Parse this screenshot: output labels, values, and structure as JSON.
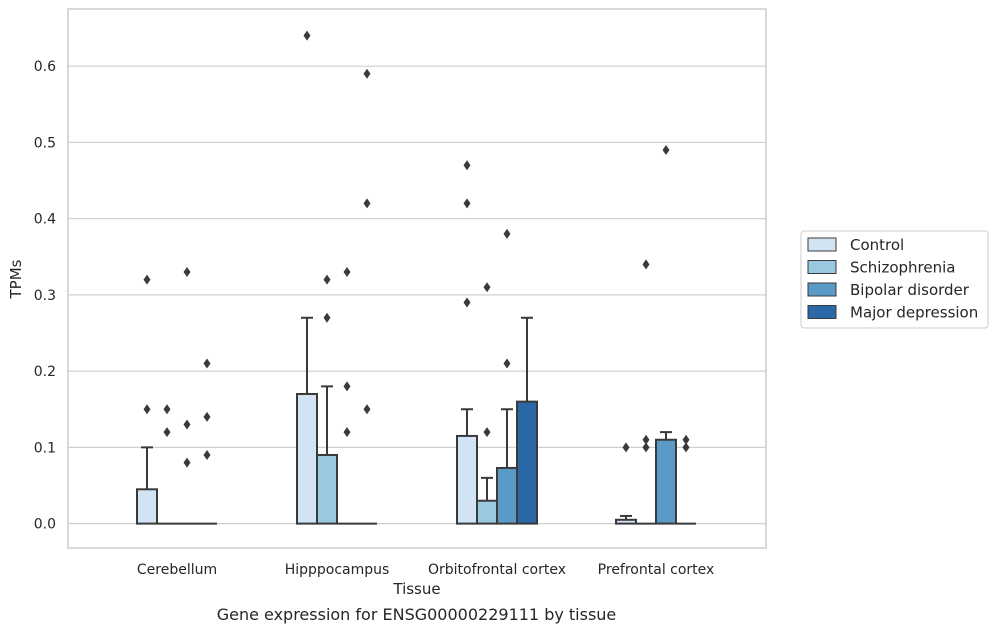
{
  "caption": "Gene expression for ENSG00000229111 by tissue",
  "chart_data": {
    "type": "bar",
    "xlabel": "Tissue",
    "ylabel": "TPMs",
    "ylim": [
      -0.032,
      0.675
    ],
    "yticks": [
      0.0,
      0.1,
      0.2,
      0.3,
      0.4,
      0.5,
      0.6
    ],
    "ytick_labels": [
      "0.0",
      "0.1",
      "0.2",
      "0.3",
      "0.4",
      "0.5",
      "0.6"
    ],
    "grid": "horizontal",
    "legend_position": "right",
    "categories": [
      "Cerebellum",
      "Hipppocampus",
      "Orbitofrontal cortex",
      "Prefrontal cortex"
    ],
    "series": [
      {
        "name": "Control",
        "color": "#d2e3f3",
        "values": [
          0.045,
          0.17,
          0.115,
          0.005
        ],
        "whisker_high": [
          0.1,
          0.27,
          0.15,
          0.01
        ],
        "outliers": [
          [
            0.32,
            0.15
          ],
          [
            0.64
          ],
          [
            0.47,
            0.42,
            0.29
          ],
          [
            0.1
          ]
        ]
      },
      {
        "name": "Schizophrenia",
        "color": "#9ac8e0",
        "values": [
          0,
          0.09,
          0.03,
          0
        ],
        "whisker_high": [
          null,
          0.18,
          0.06,
          null
        ],
        "outliers": [
          [
            0.15,
            0.12
          ],
          [
            0.32,
            0.27
          ],
          [
            0.31,
            0.12
          ],
          [
            0.34,
            0.11,
            0.1
          ]
        ]
      },
      {
        "name": "Bipolar disorder",
        "color": "#5a9ac6",
        "values": [
          0,
          0,
          0.073,
          0.11
        ],
        "whisker_high": [
          null,
          null,
          0.15,
          0.12
        ],
        "outliers": [
          [
            0.33,
            0.13,
            0.08
          ],
          [
            0.33,
            0.18,
            0.12
          ],
          [
            0.38,
            0.21
          ],
          [
            0.49
          ]
        ]
      },
      {
        "name": "Major depression",
        "color": "#2a68a8",
        "values": [
          0,
          0,
          0.16,
          0
        ],
        "whisker_high": [
          null,
          null,
          0.27,
          null
        ],
        "outliers": [
          [
            0.21,
            0.14,
            0.09
          ],
          [
            0.59,
            0.42,
            0.15
          ],
          [],
          [
            0.11,
            0.1
          ]
        ]
      }
    ]
  }
}
